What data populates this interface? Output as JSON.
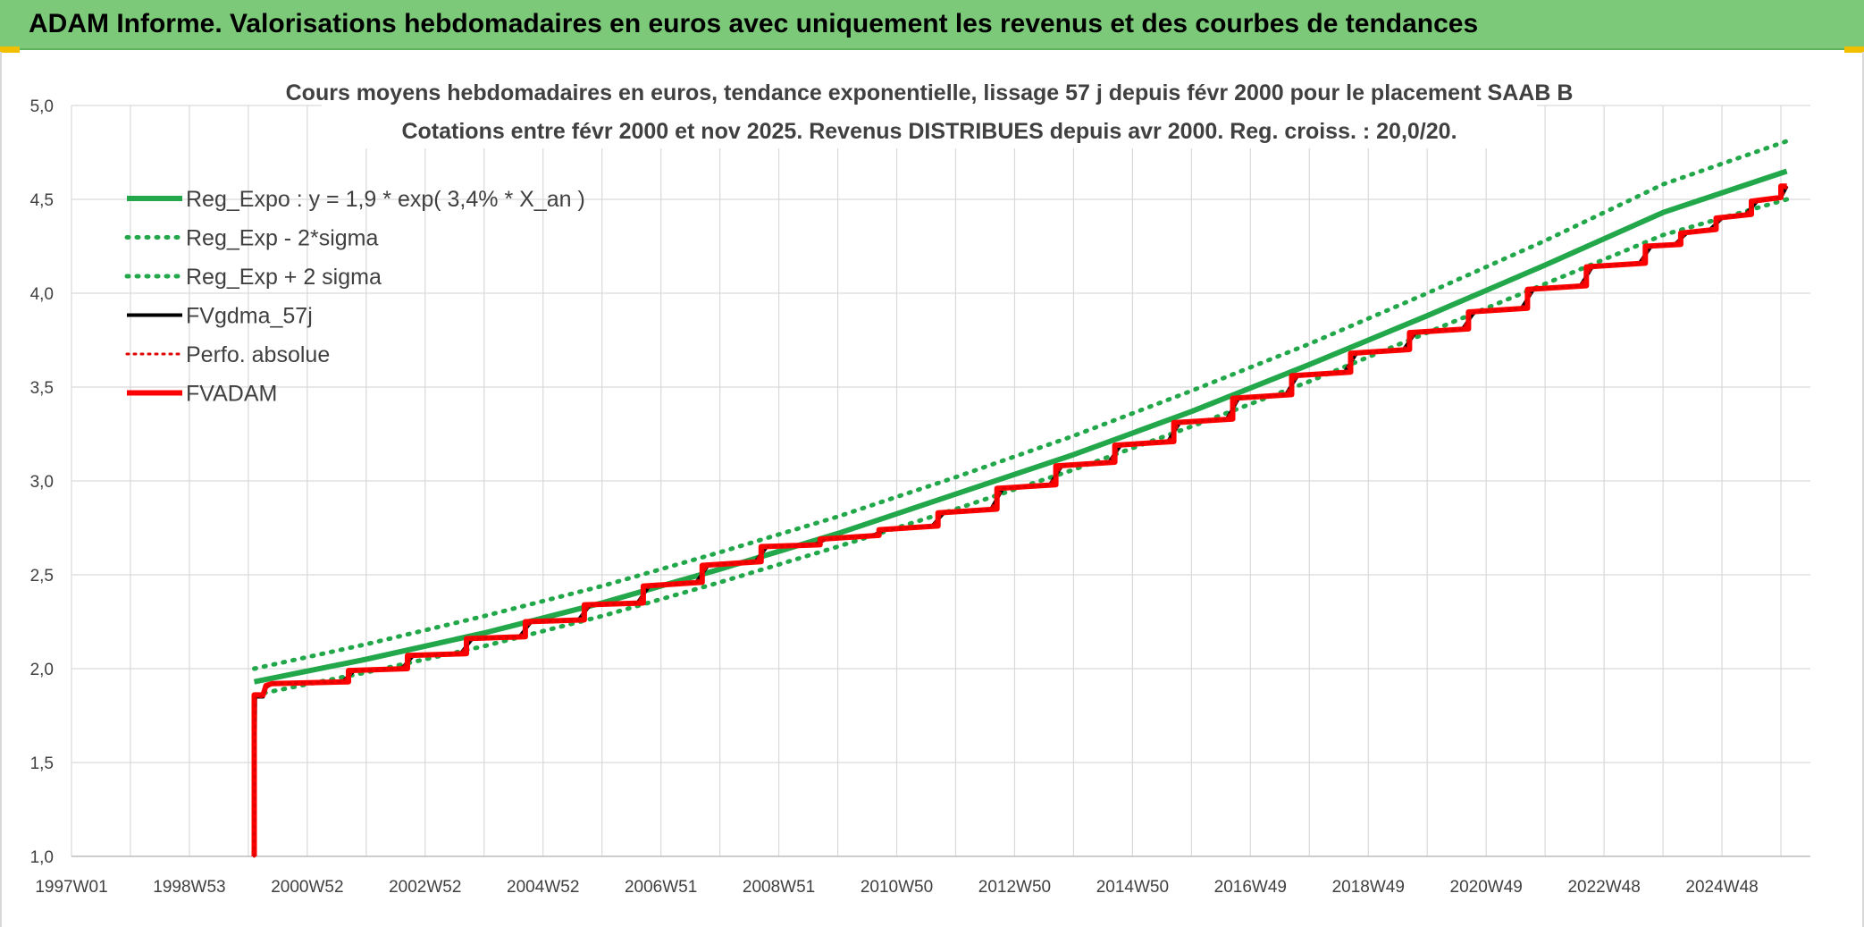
{
  "header": {
    "title": "ADAM Informe. Valorisations hebdomadaires en euros avec uniquement les revenus et des courbes de tendances"
  },
  "chart_data": {
    "type": "line",
    "title": "Cours moyens hebdomadaires en euros, tendance exponentielle, lissage 57 j depuis févr 2000 pour le placement SAAB B",
    "subtitle": "Cotations entre févr 2000 et nov 2025. Revenus DISTRIBUES depuis avr 2000. Reg. croiss. : 20,0/20.",
    "xlabel": "",
    "ylabel": "",
    "xlim": [
      1997.0,
      2026.5
    ],
    "ylim": [
      1.0,
      5.0
    ],
    "y_ticks": [
      "1,0",
      "1,5",
      "2,0",
      "2,5",
      "3,0",
      "3,5",
      "4,0",
      "4,5",
      "5,0"
    ],
    "x_ticks": [
      {
        "label": "1997W01",
        "x": 1997.0
      },
      {
        "label": "1998W53",
        "x": 1999.0
      },
      {
        "label": "2000W52",
        "x": 2001.0
      },
      {
        "label": "2002W52",
        "x": 2003.0
      },
      {
        "label": "2004W52",
        "x": 2005.0
      },
      {
        "label": "2006W51",
        "x": 2007.0
      },
      {
        "label": "2008W51",
        "x": 2009.0
      },
      {
        "label": "2010W50",
        "x": 2011.0
      },
      {
        "label": "2012W50",
        "x": 2013.0
      },
      {
        "label": "2014W50",
        "x": 2015.0
      },
      {
        "label": "2016W49",
        "x": 2017.0
      },
      {
        "label": "2018W49",
        "x": 2019.0
      },
      {
        "label": "2020W49",
        "x": 2021.0
      },
      {
        "label": "2022W48",
        "x": 2023.0
      },
      {
        "label": "2024W48",
        "x": 2025.0
      }
    ],
    "grid": true,
    "legend_position": "top-left",
    "series": [
      {
        "name": "Reg_Expo : y = 1,9 * exp( 3,4% *  X_an )",
        "color": "#22a84a",
        "style": "solid",
        "x": [
          2000.1,
          2002.0,
          2004.0,
          2006.0,
          2008.0,
          2010.0,
          2012.0,
          2014.0,
          2016.0,
          2018.0,
          2020.0,
          2022.0,
          2024.0,
          2026.1
        ],
        "y": [
          1.93,
          2.05,
          2.19,
          2.35,
          2.53,
          2.72,
          2.93,
          3.14,
          3.37,
          3.62,
          3.88,
          4.15,
          4.43,
          4.65
        ]
      },
      {
        "name": "Reg_Exp - 2*sigma",
        "color": "#22a84a",
        "style": "dotted",
        "x": [
          2000.1,
          2002.0,
          2004.0,
          2006.0,
          2008.0,
          2010.0,
          2012.0,
          2014.0,
          2016.0,
          2018.0,
          2020.0,
          2022.0,
          2024.0,
          2026.1
        ],
        "y": [
          1.86,
          1.98,
          2.12,
          2.28,
          2.46,
          2.65,
          2.85,
          3.06,
          3.29,
          3.53,
          3.79,
          4.05,
          4.31,
          4.5
        ]
      },
      {
        "name": "Reg_Exp + 2 sigma",
        "color": "#22a84a",
        "style": "dotted",
        "x": [
          2000.1,
          2002.0,
          2004.0,
          2006.0,
          2008.0,
          2010.0,
          2012.0,
          2014.0,
          2016.0,
          2018.0,
          2020.0,
          2022.0,
          2024.0,
          2026.1
        ],
        "y": [
          2.0,
          2.13,
          2.28,
          2.44,
          2.62,
          2.81,
          3.02,
          3.24,
          3.48,
          3.73,
          4.0,
          4.28,
          4.58,
          4.81
        ]
      },
      {
        "name": "FVgdma_57j",
        "color": "#000000",
        "style": "solid",
        "x": [
          2000.1,
          2000.12,
          2000.25,
          2000.3,
          2000.4,
          2001.6,
          2001.8,
          2002.6,
          2002.8,
          2003.6,
          2003.8,
          2004.6,
          2004.8,
          2005.6,
          2005.8,
          2006.6,
          2006.8,
          2007.6,
          2007.8,
          2008.6,
          2008.8,
          2009.6,
          2009.8,
          2010.6,
          2010.8,
          2011.6,
          2011.8,
          2012.6,
          2012.8,
          2013.6,
          2013.8,
          2014.6,
          2014.8,
          2015.6,
          2015.8,
          2016.6,
          2016.8,
          2017.6,
          2017.8,
          2018.6,
          2018.8,
          2019.6,
          2019.8,
          2020.6,
          2020.8,
          2021.6,
          2021.8,
          2022.6,
          2022.8,
          2023.6,
          2023.8,
          2024.2,
          2024.4,
          2024.8,
          2025.0,
          2025.4,
          2025.6,
          2026.0,
          2026.1
        ],
        "y": [
          1.0,
          1.85,
          1.85,
          1.9,
          1.92,
          1.93,
          1.99,
          2.0,
          2.07,
          2.08,
          2.16,
          2.17,
          2.25,
          2.26,
          2.34,
          2.35,
          2.44,
          2.46,
          2.55,
          2.57,
          2.65,
          2.66,
          2.69,
          2.71,
          2.74,
          2.76,
          2.83,
          2.85,
          2.96,
          2.98,
          3.08,
          3.1,
          3.19,
          3.21,
          3.31,
          3.33,
          3.44,
          3.46,
          3.56,
          3.58,
          3.68,
          3.7,
          3.79,
          3.81,
          3.9,
          3.92,
          4.02,
          4.04,
          4.14,
          4.16,
          4.25,
          4.26,
          4.32,
          4.34,
          4.4,
          4.42,
          4.49,
          4.51,
          4.57
        ]
      },
      {
        "name": "Perfo. absolue",
        "color": "#e00000",
        "style": "dotted",
        "x": [
          2000.1,
          2000.12,
          2000.25,
          2000.3,
          2000.4,
          2001.6,
          2001.8,
          2002.6,
          2002.8,
          2003.6,
          2003.8,
          2004.6,
          2004.8,
          2005.6,
          2005.8,
          2006.6,
          2006.8,
          2007.6,
          2007.8,
          2008.6,
          2008.8,
          2009.6,
          2009.8,
          2010.6,
          2010.8,
          2011.6,
          2011.8,
          2012.6,
          2012.8,
          2013.6,
          2013.8,
          2014.6,
          2014.8,
          2015.6,
          2015.8,
          2016.6,
          2016.8,
          2017.6,
          2017.8,
          2018.6,
          2018.8,
          2019.6,
          2019.8,
          2020.6,
          2020.8,
          2021.6,
          2021.8,
          2022.6,
          2022.8,
          2023.6,
          2023.8,
          2024.2,
          2024.4,
          2024.8,
          2025.0,
          2025.4,
          2025.6,
          2026.0,
          2026.1
        ],
        "y": [
          1.0,
          1.85,
          1.85,
          1.9,
          1.92,
          1.93,
          1.99,
          2.0,
          2.07,
          2.08,
          2.16,
          2.17,
          2.25,
          2.26,
          2.34,
          2.35,
          2.44,
          2.46,
          2.55,
          2.57,
          2.65,
          2.66,
          2.69,
          2.71,
          2.74,
          2.76,
          2.83,
          2.85,
          2.96,
          2.98,
          3.08,
          3.1,
          3.19,
          3.21,
          3.31,
          3.33,
          3.44,
          3.46,
          3.56,
          3.58,
          3.68,
          3.7,
          3.79,
          3.81,
          3.9,
          3.92,
          4.02,
          4.04,
          4.14,
          4.16,
          4.25,
          4.26,
          4.32,
          4.34,
          4.4,
          4.42,
          4.49,
          4.51,
          4.57
        ]
      },
      {
        "name": "FVADAM",
        "color": "#ff0000",
        "style": "solid",
        "x": [
          2000.1,
          2000.1,
          2000.25,
          2000.3,
          2000.4,
          2001.7,
          2001.7,
          2002.7,
          2002.7,
          2003.7,
          2003.7,
          2004.7,
          2004.7,
          2005.7,
          2005.7,
          2006.7,
          2006.7,
          2007.7,
          2007.7,
          2008.7,
          2008.7,
          2009.7,
          2009.7,
          2010.7,
          2010.7,
          2011.7,
          2011.7,
          2012.7,
          2012.7,
          2013.7,
          2013.7,
          2014.7,
          2014.7,
          2015.7,
          2015.7,
          2016.7,
          2016.7,
          2017.7,
          2017.7,
          2018.7,
          2018.7,
          2019.7,
          2019.7,
          2020.7,
          2020.7,
          2021.7,
          2021.7,
          2022.7,
          2022.7,
          2023.7,
          2023.7,
          2024.3,
          2024.3,
          2024.9,
          2024.9,
          2025.5,
          2025.5,
          2026.0,
          2026.0,
          2026.1
        ],
        "y": [
          1.0,
          1.86,
          1.86,
          1.91,
          1.92,
          1.93,
          1.99,
          2.0,
          2.07,
          2.08,
          2.16,
          2.17,
          2.25,
          2.26,
          2.34,
          2.35,
          2.44,
          2.46,
          2.55,
          2.57,
          2.65,
          2.66,
          2.69,
          2.71,
          2.74,
          2.76,
          2.83,
          2.85,
          2.96,
          2.98,
          3.08,
          3.1,
          3.19,
          3.21,
          3.31,
          3.33,
          3.44,
          3.46,
          3.56,
          3.58,
          3.68,
          3.7,
          3.79,
          3.81,
          3.9,
          3.92,
          4.02,
          4.04,
          4.14,
          4.16,
          4.25,
          4.26,
          4.32,
          4.34,
          4.4,
          4.42,
          4.49,
          4.51,
          4.57,
          4.57
        ]
      }
    ]
  }
}
